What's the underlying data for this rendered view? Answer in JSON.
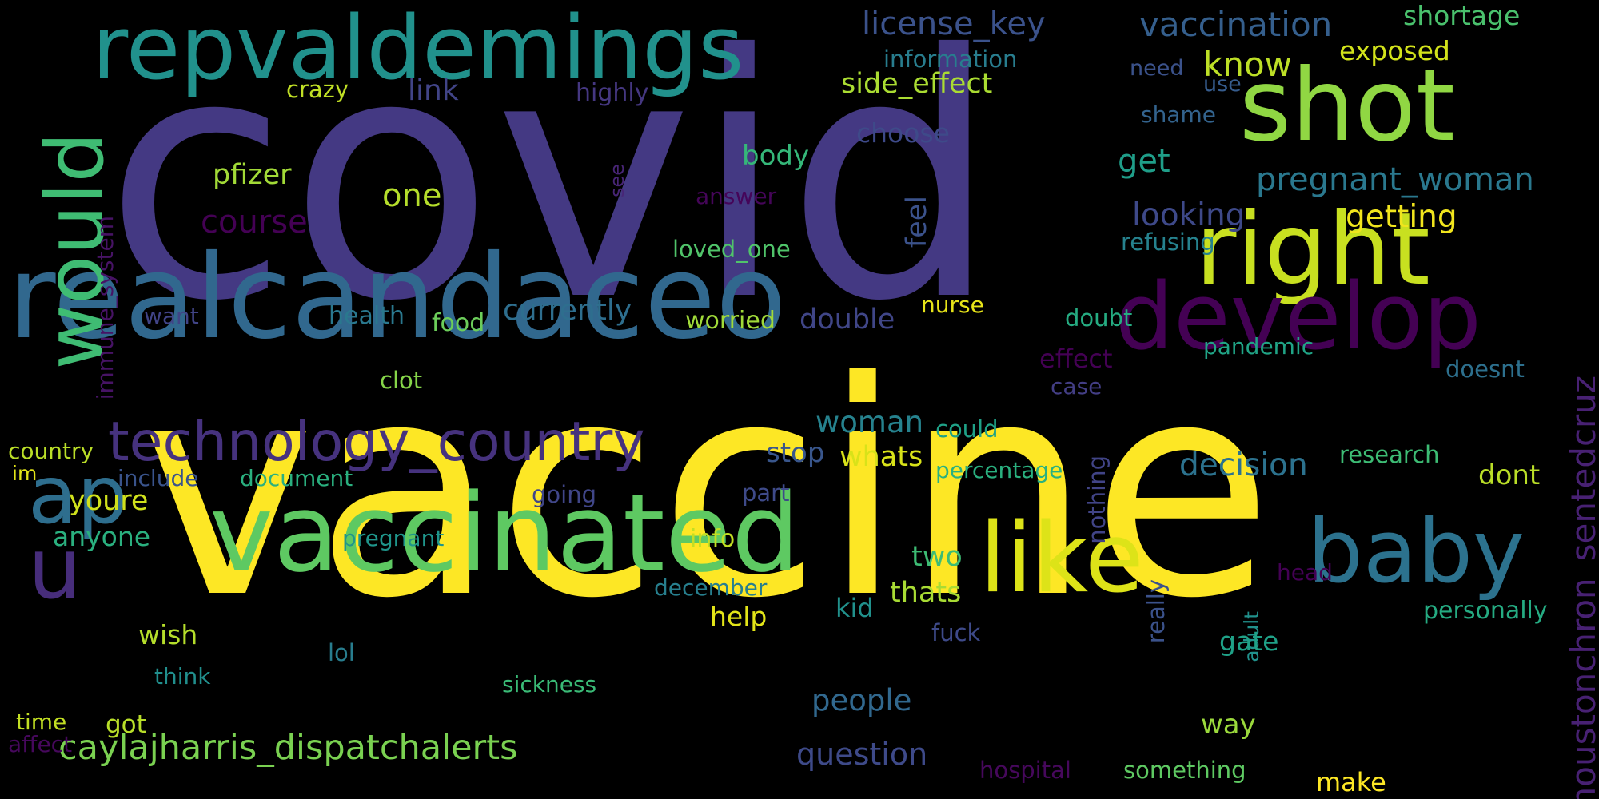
{
  "title": "",
  "background_color": "#000000",
  "words": [
    {
      "text": "covid",
      "color": "#443983"
    },
    {
      "text": "vaccine",
      "color": "#fde725"
    },
    {
      "text": "realcandaceo",
      "color": "#31688e"
    },
    {
      "text": "repvaldemings",
      "color": "#21918c"
    },
    {
      "text": "shot",
      "color": "#90d743"
    },
    {
      "text": "right",
      "color": "#c8e020"
    },
    {
      "text": "develop",
      "color": "#440154"
    },
    {
      "text": "vaccinated",
      "color": "#5ec962"
    },
    {
      "text": "technology_country",
      "color": "#46327e"
    },
    {
      "text": "like",
      "color": "#dde318"
    },
    {
      "text": "baby",
      "color": "#2c728e"
    },
    {
      "text": "would",
      "color": "#3fbc73",
      "rotation": "vertical"
    },
    {
      "text": "u",
      "color": "#472d7b"
    },
    {
      "text": "ap",
      "color": "#2e6e8e"
    },
    {
      "text": "caylajharris_dispatchalerts",
      "color": "#7ad151"
    },
    {
      "text": "houstonchron_sentedcruz",
      "color": "#482173",
      "rotation": "vertical"
    },
    {
      "text": "license_key",
      "color": "#3b528b"
    },
    {
      "text": "vaccination",
      "color": "#355f8d"
    },
    {
      "text": "shortage",
      "color": "#4ac16d"
    },
    {
      "text": "information",
      "color": "#287d8e"
    },
    {
      "text": "exposed",
      "color": "#d2e21b"
    },
    {
      "text": "need",
      "color": "#3b528b"
    },
    {
      "text": "know",
      "color": "#bddf26"
    },
    {
      "text": "use",
      "color": "#365c8d"
    },
    {
      "text": "crazy",
      "color": "#c0df25"
    },
    {
      "text": "link",
      "color": "#414487"
    },
    {
      "text": "highly",
      "color": "#453781"
    },
    {
      "text": "side_effect",
      "color": "#aadc32"
    },
    {
      "text": "shame",
      "color": "#33638d"
    },
    {
      "text": "choose",
      "color": "#3e4a89"
    },
    {
      "text": "immune_system",
      "color": "#471365",
      "rotation": "vertical"
    },
    {
      "text": "see",
      "color": "#482576",
      "rotation": "vertical"
    },
    {
      "text": "body",
      "color": "#35b779"
    },
    {
      "text": "get",
      "color": "#1f9e89"
    },
    {
      "text": "pregnant_woman",
      "color": "#2a788e"
    },
    {
      "text": "pfizer",
      "color": "#a2da37"
    },
    {
      "text": "answer",
      "color": "#450559"
    },
    {
      "text": "one",
      "color": "#b5de2b"
    },
    {
      "text": "feel",
      "color": "#3b528b",
      "rotation": "vertical"
    },
    {
      "text": "looking",
      "color": "#3e4989"
    },
    {
      "text": "getting",
      "color": "#f1e51d"
    },
    {
      "text": "course",
      "color": "#440154"
    },
    {
      "text": "loved_one",
      "color": "#50c46a"
    },
    {
      "text": "refusing",
      "color": "#26828e"
    },
    {
      "text": "want",
      "color": "#414487"
    },
    {
      "text": "health",
      "color": "#2a788e"
    },
    {
      "text": "food",
      "color": "#6ccd5a"
    },
    {
      "text": "currently",
      "color": "#2e6e8e"
    },
    {
      "text": "worried",
      "color": "#a0da39"
    },
    {
      "text": "double",
      "color": "#404688"
    },
    {
      "text": "nurse",
      "color": "#e7e419"
    },
    {
      "text": "doubt",
      "color": "#25ac82"
    },
    {
      "text": "pandemic",
      "color": "#20a486"
    },
    {
      "text": "effect",
      "color": "#440154"
    },
    {
      "text": "clot",
      "color": "#86d549"
    },
    {
      "text": "case",
      "color": "#433e85"
    },
    {
      "text": "doesnt",
      "color": "#2d708e"
    },
    {
      "text": "woman",
      "color": "#26828e"
    },
    {
      "text": "could",
      "color": "#1fa187"
    },
    {
      "text": "stop",
      "color": "#39568c"
    },
    {
      "text": "whats",
      "color": "#d8e219"
    },
    {
      "text": "country",
      "color": "#bade28"
    },
    {
      "text": "im",
      "color": "#e2e418"
    },
    {
      "text": "include",
      "color": "#3a548c"
    },
    {
      "text": "document",
      "color": "#2ab07f"
    },
    {
      "text": "percentage",
      "color": "#2ab07f"
    },
    {
      "text": "nothing",
      "color": "#414487",
      "rotation": "vertical"
    },
    {
      "text": "decision",
      "color": "#2c728e"
    },
    {
      "text": "research",
      "color": "#3dbc74"
    },
    {
      "text": "dont",
      "color": "#bade28"
    },
    {
      "text": "youre",
      "color": "#d0e11c"
    },
    {
      "text": "going",
      "color": "#404688"
    },
    {
      "text": "part",
      "color": "#3e4a89"
    },
    {
      "text": "anyone",
      "color": "#2ab07f"
    },
    {
      "text": "pregnant",
      "color": "#1f958b"
    },
    {
      "text": "info",
      "color": "#c2df23"
    },
    {
      "text": "two",
      "color": "#3dbc74"
    },
    {
      "text": "head",
      "color": "#440154"
    },
    {
      "text": "december",
      "color": "#277f8e"
    },
    {
      "text": "thats",
      "color": "#a8db34"
    },
    {
      "text": "really",
      "color": "#3b528b",
      "rotation": "vertical"
    },
    {
      "text": "adult",
      "color": "#21918c",
      "rotation": "vertical"
    },
    {
      "text": "personally",
      "color": "#25ab82"
    },
    {
      "text": "kid",
      "color": "#21918c"
    },
    {
      "text": "help",
      "color": "#e2e418"
    },
    {
      "text": "wish",
      "color": "#b5de2b"
    },
    {
      "text": "fuck",
      "color": "#3e4a89"
    },
    {
      "text": "gate",
      "color": "#1fa187"
    },
    {
      "text": "lol",
      "color": "#287d8e"
    },
    {
      "text": "think",
      "color": "#218f8d"
    },
    {
      "text": "sickness",
      "color": "#3aba76"
    },
    {
      "text": "people",
      "color": "#31688e"
    },
    {
      "text": "time",
      "color": "#c2df23"
    },
    {
      "text": "got",
      "color": "#b8de29"
    },
    {
      "text": "way",
      "color": "#9bd93c"
    },
    {
      "text": "affect",
      "color": "#46085c"
    },
    {
      "text": "question",
      "color": "#3e4a89"
    },
    {
      "text": "hospital",
      "color": "#46085c"
    },
    {
      "text": "something",
      "color": "#5ec962"
    },
    {
      "text": "make",
      "color": "#fde725"
    }
  ]
}
